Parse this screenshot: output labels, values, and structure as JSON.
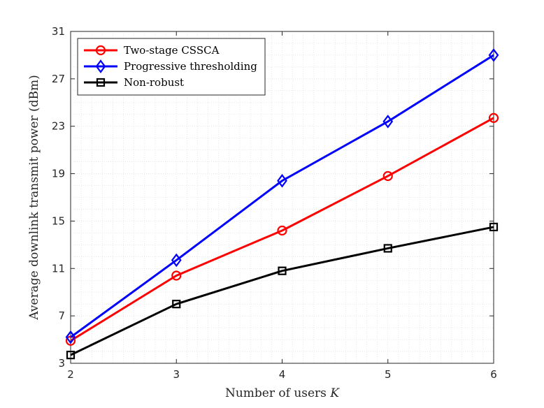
{
  "chart_data": {
    "type": "line",
    "title": "",
    "xlabel": "Number of users K",
    "ylabel": "Average downlink transmit power (dBm)",
    "x": [
      2,
      3,
      4,
      5,
      6
    ],
    "xlim": [
      2,
      6
    ],
    "ylim": [
      3,
      31
    ],
    "xticks": [
      2,
      3,
      4,
      5,
      6
    ],
    "yticks": [
      3,
      7,
      11,
      15,
      19,
      23,
      27,
      31
    ],
    "grid": "minor-dotted",
    "legend_position": "top-left",
    "series": [
      {
        "name": "Two-stage CSSCA",
        "color": "#ff0000",
        "marker": "circle",
        "values": [
          4.9,
          10.4,
          14.2,
          18.8,
          23.7
        ]
      },
      {
        "name": "Progressive thresholding",
        "color": "#0000ff",
        "marker": "diamond",
        "values": [
          5.2,
          11.7,
          18.4,
          23.4,
          29.0
        ]
      },
      {
        "name": "Non-robust",
        "color": "#000000",
        "marker": "square",
        "values": [
          3.7,
          8.0,
          10.8,
          12.7,
          14.5
        ]
      }
    ]
  }
}
